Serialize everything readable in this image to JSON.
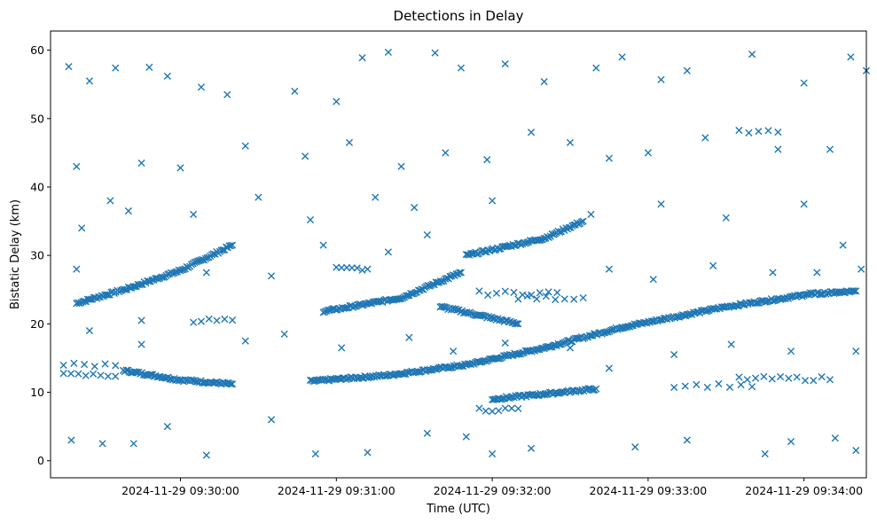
{
  "chart_data": {
    "type": "scatter",
    "title": "Detections in Delay",
    "xlabel": "Time (UTC)",
    "ylabel": "Bistatic Delay (km)",
    "marker": "x",
    "color": "#1f77b4",
    "grid": false,
    "xlim": [
      "2024-11-29 09:29:10",
      "2024-11-29 09:34:24"
    ],
    "ylim": [
      -2.5,
      62.8
    ],
    "x_ticks": [
      "2024-11-29 09:30:00",
      "2024-11-29 09:31:00",
      "2024-11-29 09:32:00",
      "2024-11-29 09:33:00",
      "2024-11-29 09:34:00"
    ],
    "y_ticks": [
      0,
      10,
      20,
      30,
      40,
      50,
      60
    ],
    "tracks": [
      {
        "x": [
          "2024-11-29 09:29:20",
          "2024-11-29 09:29:40",
          "2024-11-29 09:30:00",
          "2024-11-29 09:30:20"
        ],
        "y": [
          23.0,
          25.2,
          27.8,
          31.5
        ]
      },
      {
        "x": [
          "2024-11-29 09:29:38",
          "2024-11-29 09:30:00",
          "2024-11-29 09:30:20"
        ],
        "y": [
          13.2,
          11.8,
          11.2
        ]
      },
      {
        "x": [
          "2024-11-29 09:30:50",
          "2024-11-29 09:31:20",
          "2024-11-29 09:31:50"
        ],
        "y": [
          11.6,
          12.5,
          14.0
        ]
      },
      {
        "x": [
          "2024-11-29 09:31:50",
          "2024-11-29 09:32:20",
          "2024-11-29 09:32:50"
        ],
        "y": [
          14.0,
          16.5,
          19.5
        ]
      },
      {
        "x": [
          "2024-11-29 09:32:50",
          "2024-11-29 09:33:30",
          "2024-11-29 09:34:00"
        ],
        "y": [
          19.5,
          22.5,
          24.2
        ]
      },
      {
        "x": [
          "2024-11-29 09:30:55",
          "2024-11-29 09:31:25",
          "2024-11-29 09:31:48"
        ],
        "y": [
          21.8,
          23.8,
          27.5
        ]
      },
      {
        "x": [
          "2024-11-29 09:31:50",
          "2024-11-29 09:32:20",
          "2024-11-29 09:32:35"
        ],
        "y": [
          30.0,
          32.5,
          35.0
        ]
      },
      {
        "x": [
          "2024-11-29 09:31:40",
          "2024-11-29 09:32:10"
        ],
        "y": [
          22.5,
          20.0
        ]
      },
      {
        "x": [
          "2024-11-29 09:34:00",
          "2024-11-29 09:34:20"
        ],
        "y": [
          24.3,
          24.8
        ]
      },
      {
        "x": [
          "2024-11-29 09:32:00",
          "2024-11-29 09:32:40"
        ],
        "y": [
          9.0,
          10.5
        ]
      }
    ],
    "clusters": [
      {
        "x_range": [
          "2024-11-29 09:29:15",
          "2024-11-29 09:29:35"
        ],
        "y": 12.5,
        "n": 8
      },
      {
        "x_range": [
          "2024-11-29 09:29:15",
          "2024-11-29 09:29:35"
        ],
        "y": 14.0,
        "n": 6
      },
      {
        "x_range": [
          "2024-11-29 09:30:05",
          "2024-11-29 09:30:20"
        ],
        "y": 20.5,
        "n": 6
      },
      {
        "x_range": [
          "2024-11-29 09:31:00",
          "2024-11-29 09:31:12"
        ],
        "y": 28.0,
        "n": 7
      },
      {
        "x_range": [
          "2024-11-29 09:31:55",
          "2024-11-29 09:32:25"
        ],
        "y": 24.5,
        "n": 10
      },
      {
        "x_range": [
          "2024-11-29 09:32:10",
          "2024-11-29 09:32:35"
        ],
        "y": 23.8,
        "n": 8
      },
      {
        "x_range": [
          "2024-11-29 09:33:10",
          "2024-11-29 09:33:40"
        ],
        "y": 11.0,
        "n": 8
      },
      {
        "x_range": [
          "2024-11-29 09:33:35",
          "2024-11-29 09:33:50"
        ],
        "y": 48.0,
        "n": 5
      },
      {
        "x_range": [
          "2024-11-29 09:33:35",
          "2024-11-29 09:34:10"
        ],
        "y": 12.0,
        "n": 12
      },
      {
        "x_range": [
          "2024-11-29 09:31:55",
          "2024-11-29 09:32:10"
        ],
        "y": 7.5,
        "n": 7
      }
    ],
    "scatter_points": [
      {
        "x": "2024-11-29 09:29:17",
        "y": 57.6
      },
      {
        "x": "2024-11-29 09:29:25",
        "y": 55.5
      },
      {
        "x": "2024-11-29 09:29:35",
        "y": 57.4
      },
      {
        "x": "2024-11-29 09:29:48",
        "y": 57.5
      },
      {
        "x": "2024-11-29 09:29:55",
        "y": 56.2
      },
      {
        "x": "2024-11-29 09:30:08",
        "y": 54.6
      },
      {
        "x": "2024-11-29 09:30:18",
        "y": 53.5
      },
      {
        "x": "2024-11-29 09:30:44",
        "y": 54.0
      },
      {
        "x": "2024-11-29 09:31:00",
        "y": 52.5
      },
      {
        "x": "2024-11-29 09:31:10",
        "y": 58.9
      },
      {
        "x": "2024-11-29 09:31:20",
        "y": 59.7
      },
      {
        "x": "2024-11-29 09:31:38",
        "y": 59.6
      },
      {
        "x": "2024-11-29 09:31:48",
        "y": 57.4
      },
      {
        "x": "2024-11-29 09:32:05",
        "y": 58.0
      },
      {
        "x": "2024-11-29 09:32:20",
        "y": 55.4
      },
      {
        "x": "2024-11-29 09:32:40",
        "y": 57.4
      },
      {
        "x": "2024-11-29 09:32:50",
        "y": 59.0
      },
      {
        "x": "2024-11-29 09:33:05",
        "y": 55.7
      },
      {
        "x": "2024-11-29 09:33:15",
        "y": 57.0
      },
      {
        "x": "2024-11-29 09:33:40",
        "y": 59.4
      },
      {
        "x": "2024-11-29 09:34:00",
        "y": 55.2
      },
      {
        "x": "2024-11-29 09:34:18",
        "y": 59.0
      },
      {
        "x": "2024-11-29 09:34:24",
        "y": 57.0
      },
      {
        "x": "2024-11-29 09:29:20",
        "y": 43.0
      },
      {
        "x": "2024-11-29 09:29:33",
        "y": 38.0
      },
      {
        "x": "2024-11-29 09:29:45",
        "y": 43.5
      },
      {
        "x": "2024-11-29 09:30:00",
        "y": 42.8
      },
      {
        "x": "2024-11-29 09:30:25",
        "y": 46.0
      },
      {
        "x": "2024-11-29 09:30:48",
        "y": 44.5
      },
      {
        "x": "2024-11-29 09:31:05",
        "y": 46.5
      },
      {
        "x": "2024-11-29 09:31:25",
        "y": 43.0
      },
      {
        "x": "2024-11-29 09:31:42",
        "y": 45.0
      },
      {
        "x": "2024-11-29 09:31:58",
        "y": 44.0
      },
      {
        "x": "2024-11-29 09:32:15",
        "y": 48.0
      },
      {
        "x": "2024-11-29 09:32:30",
        "y": 46.5
      },
      {
        "x": "2024-11-29 09:32:45",
        "y": 44.2
      },
      {
        "x": "2024-11-29 09:33:00",
        "y": 45.0
      },
      {
        "x": "2024-11-29 09:33:22",
        "y": 47.2
      },
      {
        "x": "2024-11-29 09:33:50",
        "y": 45.5
      },
      {
        "x": "2024-11-29 09:34:10",
        "y": 45.5
      },
      {
        "x": "2024-11-29 09:29:22",
        "y": 34.0
      },
      {
        "x": "2024-11-29 09:29:40",
        "y": 36.5
      },
      {
        "x": "2024-11-29 09:30:05",
        "y": 36.0
      },
      {
        "x": "2024-11-29 09:30:30",
        "y": 38.5
      },
      {
        "x": "2024-11-29 09:30:50",
        "y": 35.2
      },
      {
        "x": "2024-11-29 09:31:15",
        "y": 38.5
      },
      {
        "x": "2024-11-29 09:31:30",
        "y": 37.0
      },
      {
        "x": "2024-11-29 09:32:00",
        "y": 38.0
      },
      {
        "x": "2024-11-29 09:32:38",
        "y": 36.0
      },
      {
        "x": "2024-11-29 09:33:05",
        "y": 37.5
      },
      {
        "x": "2024-11-29 09:33:30",
        "y": 35.5
      },
      {
        "x": "2024-11-29 09:34:00",
        "y": 37.5
      },
      {
        "x": "2024-11-29 09:34:15",
        "y": 31.5
      },
      {
        "x": "2024-11-29 09:29:18",
        "y": 3.0
      },
      {
        "x": "2024-11-29 09:29:30",
        "y": 2.5
      },
      {
        "x": "2024-11-29 09:29:42",
        "y": 2.5
      },
      {
        "x": "2024-11-29 09:29:55",
        "y": 5.0
      },
      {
        "x": "2024-11-29 09:30:10",
        "y": 0.8
      },
      {
        "x": "2024-11-29 09:30:35",
        "y": 6.0
      },
      {
        "x": "2024-11-29 09:30:52",
        "y": 1.0
      },
      {
        "x": "2024-11-29 09:31:12",
        "y": 1.2
      },
      {
        "x": "2024-11-29 09:31:35",
        "y": 4.0
      },
      {
        "x": "2024-11-29 09:31:50",
        "y": 3.5
      },
      {
        "x": "2024-11-29 09:32:00",
        "y": 1.0
      },
      {
        "x": "2024-11-29 09:32:15",
        "y": 1.8
      },
      {
        "x": "2024-11-29 09:32:55",
        "y": 2.0
      },
      {
        "x": "2024-11-29 09:33:15",
        "y": 3.0
      },
      {
        "x": "2024-11-29 09:33:45",
        "y": 1.0
      },
      {
        "x": "2024-11-29 09:33:55",
        "y": 2.8
      },
      {
        "x": "2024-11-29 09:34:12",
        "y": 3.3
      },
      {
        "x": "2024-11-29 09:34:20",
        "y": 1.5
      },
      {
        "x": "2024-11-29 09:29:25",
        "y": 19.0
      },
      {
        "x": "2024-11-29 09:29:45",
        "y": 17.0
      },
      {
        "x": "2024-11-29 09:30:25",
        "y": 17.5
      },
      {
        "x": "2024-11-29 09:30:40",
        "y": 18.5
      },
      {
        "x": "2024-11-29 09:31:02",
        "y": 16.5
      },
      {
        "x": "2024-11-29 09:31:28",
        "y": 18.0
      },
      {
        "x": "2024-11-29 09:31:45",
        "y": 16.0
      },
      {
        "x": "2024-11-29 09:32:05",
        "y": 17.2
      },
      {
        "x": "2024-11-29 09:32:30",
        "y": 16.5
      },
      {
        "x": "2024-11-29 09:32:45",
        "y": 13.5
      },
      {
        "x": "2024-11-29 09:33:10",
        "y": 15.5
      },
      {
        "x": "2024-11-29 09:33:32",
        "y": 17.0
      },
      {
        "x": "2024-11-29 09:33:55",
        "y": 16.0
      },
      {
        "x": "2024-11-29 09:34:20",
        "y": 16.0
      },
      {
        "x": "2024-11-29 09:29:20",
        "y": 28.0
      },
      {
        "x": "2024-11-29 09:29:45",
        "y": 20.5
      },
      {
        "x": "2024-11-29 09:30:10",
        "y": 27.5
      },
      {
        "x": "2024-11-29 09:30:35",
        "y": 27.0
      },
      {
        "x": "2024-11-29 09:30:55",
        "y": 31.5
      },
      {
        "x": "2024-11-29 09:31:20",
        "y": 30.5
      },
      {
        "x": "2024-11-29 09:31:35",
        "y": 33.0
      },
      {
        "x": "2024-11-29 09:32:45",
        "y": 28.0
      },
      {
        "x": "2024-11-29 09:33:02",
        "y": 26.5
      },
      {
        "x": "2024-11-29 09:33:25",
        "y": 28.5
      },
      {
        "x": "2024-11-29 09:33:48",
        "y": 27.5
      },
      {
        "x": "2024-11-29 09:34:05",
        "y": 27.5
      },
      {
        "x": "2024-11-29 09:34:22",
        "y": 28.0
      }
    ]
  }
}
